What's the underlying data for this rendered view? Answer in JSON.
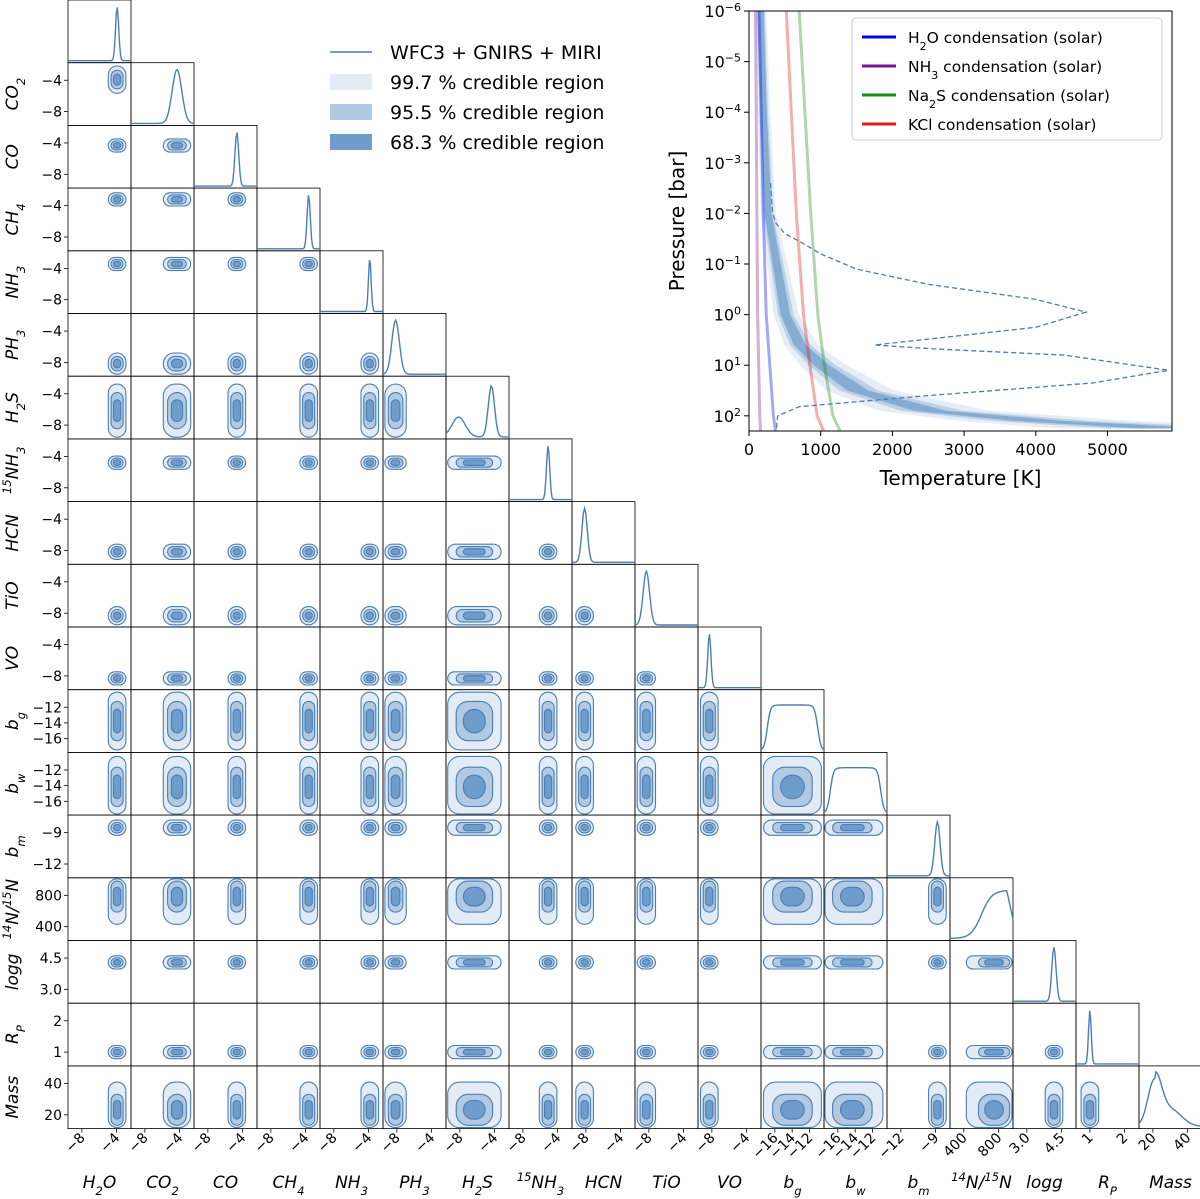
{
  "chart_data": [
    {
      "type": "corner",
      "title": "",
      "parameters": [
        {
          "id": "h2o",
          "label": "H2O",
          "x_ticks": [
            "−8",
            "−4"
          ],
          "y_ticks": [],
          "peak": "narrow"
        },
        {
          "id": "co2",
          "label": "CO2",
          "x_ticks": [
            "−8",
            "−4"
          ],
          "y_ticks": [
            "−4",
            "−8"
          ],
          "peak": "narrow"
        },
        {
          "id": "co",
          "label": "CO",
          "x_ticks": [
            "−8",
            "−4"
          ],
          "y_ticks": [
            "−4",
            "−8"
          ],
          "peak": "narrow"
        },
        {
          "id": "ch4",
          "label": "CH4",
          "x_ticks": [
            "−8",
            "−4"
          ],
          "y_ticks": [
            "−4",
            "−8"
          ],
          "peak": "narrow"
        },
        {
          "id": "nh3",
          "label": "NH3",
          "x_ticks": [
            "−8",
            "−4"
          ],
          "y_ticks": [
            "−4",
            "−8"
          ],
          "peak": "narrow"
        },
        {
          "id": "ph3",
          "label": "PH3",
          "x_ticks": [
            "−8",
            "−4"
          ],
          "y_ticks": [
            "−4",
            "−8"
          ],
          "peak": "broad"
        },
        {
          "id": "h2s",
          "label": "H2S",
          "x_ticks": [
            "−8",
            "−4"
          ],
          "y_ticks": [
            "−4",
            "−8"
          ],
          "peak": "bimodal"
        },
        {
          "id": "n15h3",
          "label": "15NH3",
          "x_ticks": [
            "−8",
            "−4"
          ],
          "y_ticks": [
            "−4",
            "−8"
          ],
          "peak": "narrow"
        },
        {
          "id": "hcn",
          "label": "HCN",
          "x_ticks": [
            "−8",
            "−4"
          ],
          "y_ticks": [
            "−4",
            "−8"
          ],
          "peak": "broad"
        },
        {
          "id": "tio",
          "label": "TiO",
          "x_ticks": [
            "−8",
            "−4"
          ],
          "y_ticks": [
            "−4",
            "−8"
          ],
          "peak": "broad"
        },
        {
          "id": "vo",
          "label": "VO",
          "x_ticks": [
            "−8",
            "−4"
          ],
          "y_ticks": [
            "−4",
            "−8"
          ],
          "peak": "narrow"
        },
        {
          "id": "bg",
          "label": "b_g",
          "x_ticks": [
            "−16",
            "−14",
            "−12"
          ],
          "y_ticks": [
            "−12",
            "−14",
            "−16"
          ],
          "peak": "flat"
        },
        {
          "id": "bw",
          "label": "b_w",
          "x_ticks": [
            "−16",
            "−14",
            "−12"
          ],
          "y_ticks": [
            "−12",
            "−14",
            "−16"
          ],
          "peak": "flat"
        },
        {
          "id": "bm",
          "label": "b_m",
          "x_ticks": [
            "−12",
            "−9"
          ],
          "y_ticks": [
            "−9",
            "−12"
          ],
          "peak": "narrow"
        },
        {
          "id": "ratio",
          "label": "14N/15N",
          "x_ticks": [
            "400",
            "800"
          ],
          "y_ticks": [
            "800",
            "400"
          ],
          "peak": "rising"
        },
        {
          "id": "logg",
          "label": "logg",
          "x_ticks": [
            "3.0",
            "4.5"
          ],
          "y_ticks": [
            "4.5",
            "3.0"
          ],
          "peak": "narrow"
        },
        {
          "id": "rp",
          "label": "R_P",
          "x_ticks": [
            "1",
            "2"
          ],
          "y_ticks": [
            "2",
            "1"
          ],
          "peak": "narrow"
        },
        {
          "id": "mass",
          "label": "Mass",
          "x_ticks": [
            "20",
            "40"
          ],
          "y_ticks": [
            "40",
            "20"
          ],
          "peak": "skewed"
        }
      ],
      "legend": [
        {
          "label": "WFC3 + GNIRS + MIRI",
          "kind": "line",
          "color": "#4a7fb5"
        },
        {
          "label": "99.7 % credible region",
          "kind": "patch",
          "color": "#e3ebf5"
        },
        {
          "label": "95.5 % credible region",
          "kind": "patch",
          "color": "#b2c9e2"
        },
        {
          "label": "68.3 % credible region",
          "kind": "patch",
          "color": "#6e9ccb"
        }
      ]
    },
    {
      "type": "line",
      "title": "",
      "xlabel": "Temperature [K]",
      "ylabel": "Pressure [bar]",
      "xlim": [
        0,
        5900
      ],
      "ylim_log10": [
        -6,
        2.3
      ],
      "x_ticks": [
        "0",
        "1000",
        "2000",
        "3000",
        "4000",
        "5000"
      ],
      "y_ticks": [
        {
          "exp": -6,
          "label": "10−6"
        },
        {
          "exp": -5,
          "label": "10−5"
        },
        {
          "exp": -4,
          "label": "10−4"
        },
        {
          "exp": -3,
          "label": "10−3"
        },
        {
          "exp": -2,
          "label": "10−2"
        },
        {
          "exp": -1,
          "label": "10−1"
        },
        {
          "exp": 0,
          "label": "100"
        },
        {
          "exp": 1,
          "label": "101"
        },
        {
          "exp": 2,
          "label": "102"
        }
      ],
      "legend": [
        {
          "species": "H2O",
          "text": "condensation (solar)",
          "color": "#0000ee"
        },
        {
          "species": "NH3",
          "text": "condensation (solar)",
          "color": "#7b1a8e"
        },
        {
          "species": "Na2S",
          "text": "condensation (solar)",
          "color": "#1a8a1a"
        },
        {
          "species": "KCl",
          "text": "condensation (solar)",
          "color": "#e01818"
        }
      ],
      "series": [
        {
          "name": "H2O condensation",
          "color": "#0000ee",
          "points": [
            [
              140,
              -6
            ],
            [
              170,
              -4
            ],
            [
              200,
              -2
            ],
            [
              240,
              0
            ],
            [
              290,
              1
            ],
            [
              340,
              2
            ],
            [
              370,
              2.3
            ]
          ]
        },
        {
          "name": "NH3 condensation",
          "color": "#7b1a8e",
          "points": [
            [
              90,
              -6
            ],
            [
              100,
              -4
            ],
            [
              110,
              -2
            ],
            [
              120,
              0
            ],
            [
              135,
              1
            ],
            [
              150,
              2
            ],
            [
              160,
              2.3
            ]
          ]
        },
        {
          "name": "Na2S condensation",
          "color": "#1a8a1a",
          "points": [
            [
              700,
              -6
            ],
            [
              780,
              -4
            ],
            [
              860,
              -2
            ],
            [
              960,
              0
            ],
            [
              1050,
              1
            ],
            [
              1170,
              2
            ],
            [
              1270,
              2.3
            ]
          ]
        },
        {
          "name": "KCl condensation",
          "color": "#e01818",
          "points": [
            [
              520,
              -6
            ],
            [
              590,
              -4
            ],
            [
              660,
              -2
            ],
            [
              760,
              0
            ],
            [
              850,
              1
            ],
            [
              950,
              2
            ],
            [
              1040,
              2.3
            ]
          ]
        },
        {
          "name": "contribution function",
          "color": "#4a7fb5",
          "style": "dashed",
          "points": [
            [
              300,
              -2.6
            ],
            [
              330,
              -2.0
            ],
            [
              380,
              -1.8
            ],
            [
              500,
              -1.6
            ],
            [
              700,
              -1.45
            ],
            [
              1000,
              -1.2
            ],
            [
              1500,
              -0.9
            ],
            [
              2500,
              -0.6
            ],
            [
              4000,
              -0.3
            ],
            [
              4700,
              -0.05
            ],
            [
              4000,
              0.25
            ],
            [
              2400,
              0.5
            ],
            [
              1750,
              0.6
            ],
            [
              2600,
              0.68
            ],
            [
              4400,
              0.8
            ],
            [
              5850,
              1.1
            ],
            [
              4800,
              1.35
            ],
            [
              2500,
              1.6
            ],
            [
              700,
              1.82
            ],
            [
              400,
              2.0
            ],
            [
              380,
              2.3
            ]
          ]
        }
      ],
      "pt_profile": {
        "points": [
          [
            160,
            -6
          ],
          [
            200,
            -4
          ],
          [
            260,
            -2
          ],
          [
            380,
            -1
          ],
          [
            500,
            0
          ],
          [
            700,
            0.6
          ],
          [
            1000,
            1.0
          ],
          [
            1500,
            1.5
          ],
          [
            2500,
            1.9
          ],
          [
            4000,
            2.1
          ],
          [
            5900,
            2.25
          ]
        ]
      }
    }
  ]
}
